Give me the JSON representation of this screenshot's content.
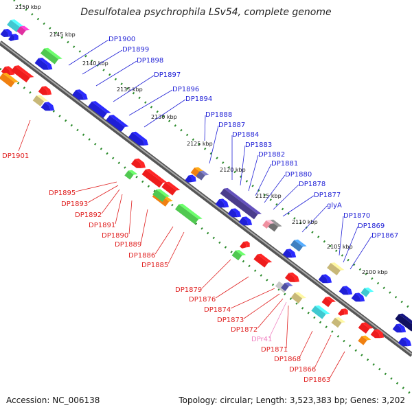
{
  "title": "Desulfotalea psychrophila LSv54, complete genome",
  "footer": {
    "accession": "Accession: NC_006138",
    "stats": "Topology: circular; Length: 3,523,383 bp; Genes: 3,202"
  },
  "colors": {
    "forward_label": "#1f1fd6",
    "reverse_label": "#e02020",
    "rna_label": "#f080c0",
    "backbone": "#888888",
    "ticks": "#2a8a2a"
  },
  "scale_labels": [
    "2150 kbp",
    "2145 kbp",
    "2140 kbp",
    "2135 kbp",
    "2130 kbp",
    "2125 kbp",
    "2120 kbp",
    "2115 kbp",
    "2110 kbp",
    "2105 kbp",
    "2100 kbp"
  ],
  "forward_genes": [
    "DP1900",
    "DP1899",
    "DP1898",
    "DP1897",
    "DP1896",
    "DP1894",
    "DP1888",
    "DP1887",
    "DP1884",
    "DP1883",
    "DP1882",
    "DP1881",
    "DP1880",
    "DP1878",
    "DP1877",
    "glyA",
    "DP1870",
    "DP1869",
    "DP1867"
  ],
  "reverse_genes": [
    "DP1901",
    "DP1895",
    "DP1893",
    "DP1892",
    "DP1891",
    "DP1890",
    "DP1889",
    "DP1886",
    "DP1885",
    "DP1879",
    "DP1876",
    "DP1874",
    "DP1873",
    "DP1872",
    "DPr41",
    "DP1871",
    "DP1868",
    "DP1866",
    "DP1863"
  ]
}
